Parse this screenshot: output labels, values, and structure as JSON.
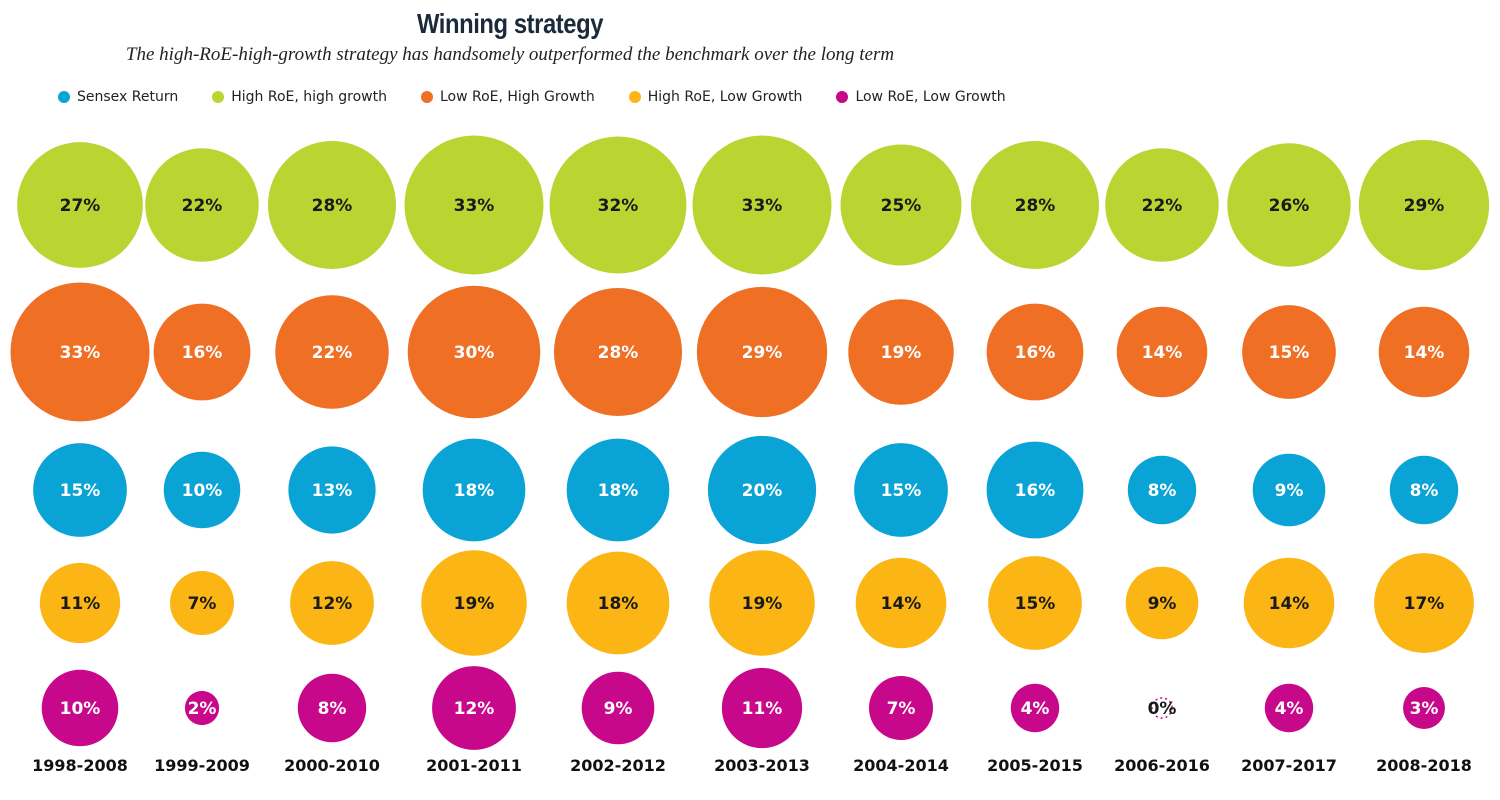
{
  "chart_data": {
    "type": "bubble-grid",
    "title": "Winning strategy",
    "subtitle": "The high-RoE-high-growth strategy has handsomely outperformed the benchmark over the long term",
    "categories": [
      "1998-2008",
      "1999-2009",
      "2000-2010",
      "2001-2011",
      "2002-2012",
      "2003-2013",
      "2004-2014",
      "2005-2015",
      "2006-2016",
      "2007-2017",
      "2008-2018"
    ],
    "legend": [
      {
        "name": "Sensex Return",
        "color": "#0aa3d6"
      },
      {
        "name": "High RoE, high growth",
        "color": "#bad532"
      },
      {
        "name": "Low RoE, High Growth",
        "color": "#ef6f24"
      },
      {
        "name": "High RoE, Low Growth",
        "color": "#fbb616"
      },
      {
        "name": "Low RoE, Low Growth",
        "color": "#c8088a"
      }
    ],
    "rows": [
      {
        "series": "High RoE, high growth",
        "color": "#bad532",
        "text_color": "#1a1a1a",
        "values": [
          27,
          22,
          28,
          33,
          32,
          33,
          25,
          28,
          22,
          26,
          29
        ]
      },
      {
        "series": "Low RoE, High Growth",
        "color": "#ef6f24",
        "text_color": "#ffffff",
        "values": [
          33,
          16,
          22,
          30,
          28,
          29,
          19,
          16,
          14,
          15,
          14
        ]
      },
      {
        "series": "Sensex Return",
        "color": "#0aa3d6",
        "text_color": "#ffffff",
        "values": [
          15,
          10,
          13,
          18,
          18,
          20,
          15,
          16,
          8,
          9,
          8
        ]
      },
      {
        "series": "High RoE, Low Growth",
        "color": "#fbb616",
        "text_color": "#1a1a1a",
        "values": [
          11,
          7,
          12,
          19,
          18,
          19,
          14,
          15,
          9,
          14,
          17
        ]
      },
      {
        "series": "Low RoE, Low Growth",
        "color": "#c8088a",
        "text_color": "#ffffff",
        "values": [
          10,
          2,
          8,
          12,
          9,
          11,
          7,
          4,
          0,
          4,
          3
        ]
      }
    ],
    "unit": "%"
  }
}
